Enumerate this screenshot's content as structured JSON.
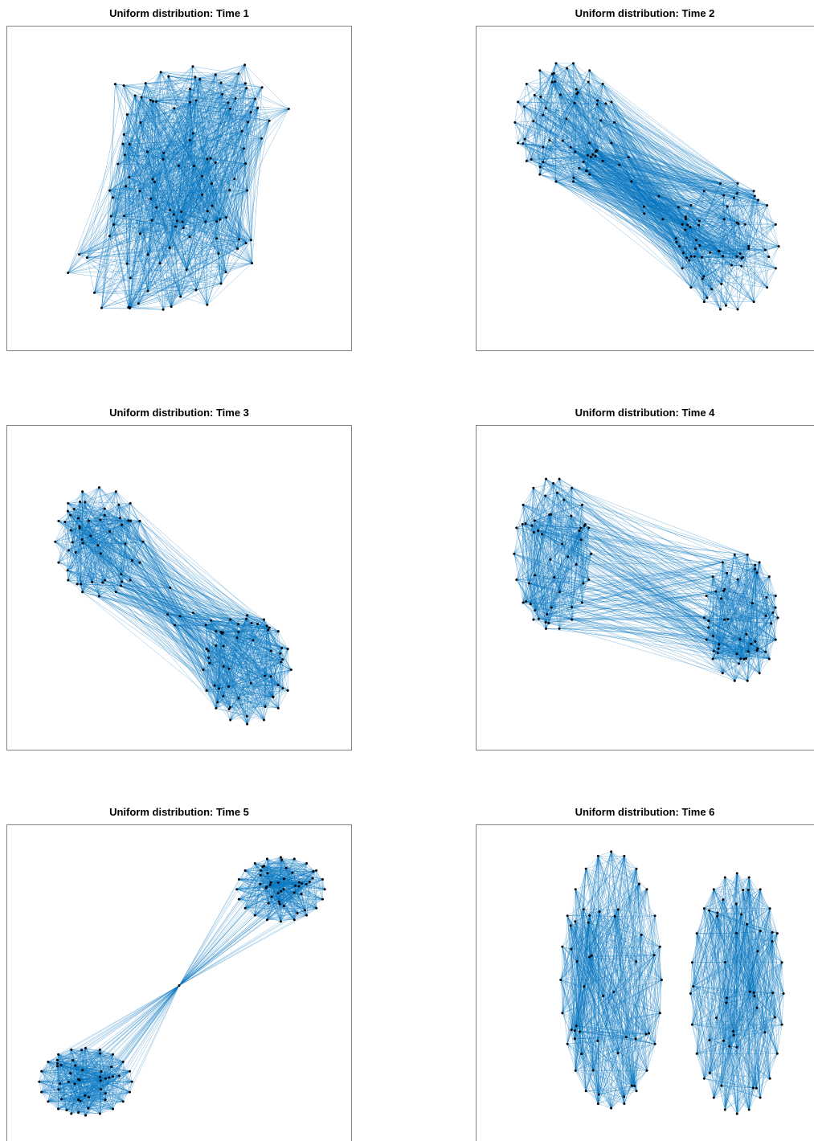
{
  "figure": {
    "edge_color": "#0072BD",
    "node_color": "#000000",
    "panels": [
      {
        "id": "p1",
        "title": "Uniform distribution: Time 1"
      },
      {
        "id": "p2",
        "title": "Uniform distribution: Time 2"
      },
      {
        "id": "p3",
        "title": "Uniform distribution: Time 3"
      },
      {
        "id": "p4",
        "title": "Uniform distribution: Time 4"
      },
      {
        "id": "p5",
        "title": "Uniform distribution: Time 5"
      },
      {
        "id": "p6",
        "title": "Uniform distribution: Time 6"
      }
    ]
  }
}
